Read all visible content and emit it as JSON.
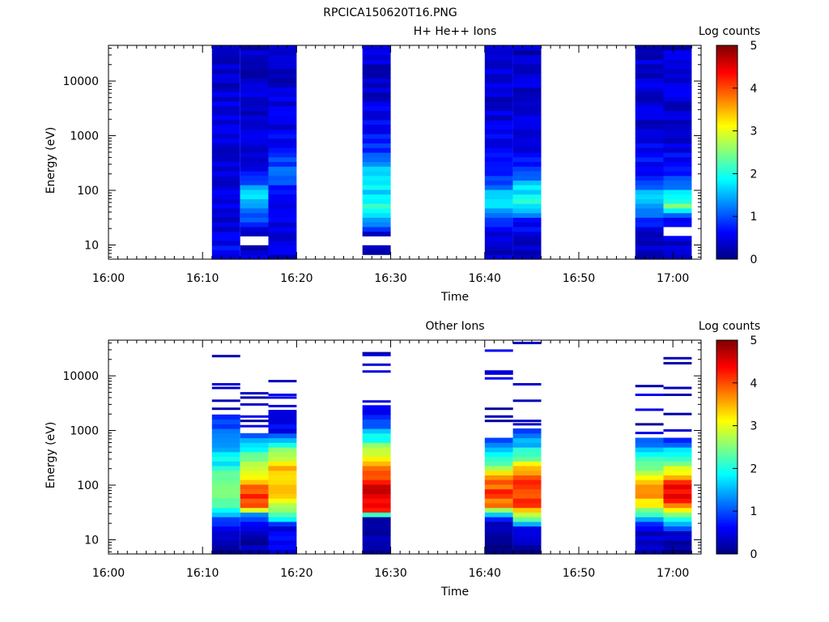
{
  "figure": {
    "title": "RPCICA150620T16.PNG"
  },
  "chart_data": [
    {
      "type": "heatmap",
      "title": "H+ He++ Ions",
      "xlabel": "Time",
      "ylabel": "Energy (eV)",
      "xlim": [
        "16:00",
        "17:03"
      ],
      "ylim": [
        5.5,
        45000
      ],
      "yscale": "log",
      "x_ticks": [
        "16:00",
        "16:10",
        "16:20",
        "16:30",
        "16:40",
        "16:50",
        "17:00"
      ],
      "y_ticks": [
        "10",
        "100",
        "1000",
        "10000"
      ],
      "colorbar": {
        "label": "Log counts",
        "ticks": [
          "0",
          "1",
          "2",
          "3",
          "4",
          "5"
        ],
        "range": [
          0,
          5
        ],
        "colormap": "jet"
      },
      "grid": false,
      "columns": [
        {
          "start": "16:11",
          "end": "16:14",
          "profile": [
            [
              5.5,
              0.7
            ],
            [
              10,
              0.55
            ],
            [
              25,
              0.45
            ],
            [
              60,
              0.5
            ],
            [
              150,
              0.5
            ],
            [
              500,
              0.45
            ],
            [
              2000,
              0.45
            ],
            [
              10000,
              0.4
            ],
            [
              45000,
              0.35
            ]
          ],
          "gaps": []
        },
        {
          "start": "16:14",
          "end": "16:17",
          "profile": [
            [
              5.5,
              0.3
            ],
            [
              20,
              0.5
            ],
            [
              30,
              1.0
            ],
            [
              50,
              1.4
            ],
            [
              80,
              1.7
            ],
            [
              120,
              1.2
            ],
            [
              200,
              0.7
            ],
            [
              500,
              0.5
            ],
            [
              2000,
              0.4
            ],
            [
              10000,
              0.35
            ],
            [
              45000,
              0.3
            ]
          ],
          "gaps": [
            [
              10,
              15
            ]
          ]
        },
        {
          "start": "16:17",
          "end": "16:20",
          "profile": [
            [
              5.5,
              0.35
            ],
            [
              30,
              0.6
            ],
            [
              100,
              0.8
            ],
            [
              250,
              1.1
            ],
            [
              400,
              0.9
            ],
            [
              800,
              0.6
            ],
            [
              2000,
              0.45
            ],
            [
              10000,
              0.4
            ],
            [
              45000,
              0.35
            ]
          ],
          "gaps": []
        },
        {
          "start": "16:27",
          "end": "16:30",
          "profile": [
            [
              5.5,
              0.05
            ],
            [
              9,
              0.3
            ],
            [
              16,
              0.5
            ],
            [
              30,
              1.5
            ],
            [
              50,
              2.0
            ],
            [
              100,
              1.7
            ],
            [
              200,
              1.9
            ],
            [
              350,
              1.3
            ],
            [
              700,
              0.7
            ],
            [
              2000,
              0.5
            ],
            [
              10000,
              0.4
            ],
            [
              45000,
              0.35
            ]
          ],
          "gaps": [
            [
              5.5,
              6.2
            ],
            [
              9.5,
              15
            ]
          ]
        },
        {
          "start": "16:40",
          "end": "16:43",
          "profile": [
            [
              5.5,
              0.4
            ],
            [
              20,
              0.55
            ],
            [
              40,
              1.3
            ],
            [
              60,
              1.9
            ],
            [
              100,
              1.4
            ],
            [
              200,
              0.8
            ],
            [
              1000,
              0.5
            ],
            [
              5000,
              0.4
            ],
            [
              45000,
              0.35
            ]
          ],
          "gaps": []
        },
        {
          "start": "16:43",
          "end": "16:46",
          "profile": [
            [
              5.5,
              0.3
            ],
            [
              25,
              0.6
            ],
            [
              40,
              1.5
            ],
            [
              70,
              2.1
            ],
            [
              120,
              1.6
            ],
            [
              250,
              0.8
            ],
            [
              1000,
              0.45
            ],
            [
              5000,
              0.4
            ],
            [
              45000,
              0.3
            ]
          ],
          "gaps": []
        },
        {
          "start": "16:56",
          "end": "16:59",
          "profile": [
            [
              5.5,
              0.15
            ],
            [
              20,
              0.5
            ],
            [
              40,
              1.2
            ],
            [
              70,
              1.8
            ],
            [
              100,
              1.3
            ],
            [
              200,
              0.7
            ],
            [
              1000,
              0.45
            ],
            [
              5000,
              0.4
            ],
            [
              45000,
              0.35
            ]
          ],
          "gaps": []
        },
        {
          "start": "16:59",
          "end": "17:02",
          "profile": [
            [
              5.5,
              0.3
            ],
            [
              30,
              0.7
            ],
            [
              50,
              2.4
            ],
            [
              80,
              1.8
            ],
            [
              150,
              1.0
            ],
            [
              400,
              0.6
            ],
            [
              1000,
              0.45
            ],
            [
              5000,
              0.4
            ],
            [
              45000,
              0.35
            ]
          ],
          "gaps": [
            [
              15,
              20
            ]
          ]
        }
      ]
    },
    {
      "type": "heatmap",
      "title": "Other Ions",
      "xlabel": "Time",
      "ylabel": "Energy (eV)",
      "xlim": [
        "16:00",
        "17:03"
      ],
      "ylim": [
        5.5,
        45000
      ],
      "yscale": "log",
      "x_ticks": [
        "16:00",
        "16:10",
        "16:20",
        "16:30",
        "16:40",
        "16:50",
        "17:00"
      ],
      "y_ticks": [
        "10",
        "100",
        "1000",
        "10000"
      ],
      "colorbar": {
        "label": "Log counts",
        "ticks": [
          "0",
          "1",
          "2",
          "3",
          "4",
          "5"
        ],
        "range": [
          0,
          5
        ],
        "colormap": "jet"
      },
      "grid": false,
      "columns": [
        {
          "start": "16:11",
          "end": "16:14",
          "profile": [
            [
              5.5,
              0.1
            ],
            [
              15,
              0.3
            ],
            [
              20,
              0.7
            ],
            [
              30,
              1.6
            ],
            [
              50,
              2.3
            ],
            [
              100,
              2.6
            ],
            [
              200,
              2.1
            ],
            [
              500,
              1.4
            ],
            [
              1000,
              1.0
            ],
            [
              1800,
              0.7
            ]
          ],
          "top": 1800,
          "sparse": [
            2500,
            3500,
            6000,
            7000,
            23000
          ]
        },
        {
          "start": "16:14",
          "end": "16:17",
          "profile": [
            [
              5.5,
              0.1
            ],
            [
              20,
              0.6
            ],
            [
              30,
              1.5
            ],
            [
              40,
              3.8
            ],
            [
              60,
              4.1
            ],
            [
              100,
              3.7
            ],
            [
              150,
              3.0
            ],
            [
              300,
              2.5
            ],
            [
              600,
              1.5
            ],
            [
              900,
              0.8
            ]
          ],
          "top": 900,
          "sparse": [
            1200,
            1500,
            1800,
            3000,
            4000,
            4800
          ]
        },
        {
          "start": "16:17",
          "end": "16:20",
          "profile": [
            [
              5.5,
              0.5
            ],
            [
              18,
              0.5
            ],
            [
              22,
              1.5
            ],
            [
              30,
              2.5
            ],
            [
              60,
              3.2
            ],
            [
              120,
              3.3
            ],
            [
              200,
              3.5
            ],
            [
              400,
              2.6
            ],
            [
              700,
              1.6
            ],
            [
              1000,
              0.6
            ],
            [
              1800,
              0.3
            ]
          ],
          "top": 2200,
          "sparse": [
            2800,
            4000,
            4500,
            8000
          ]
        },
        {
          "start": "16:27",
          "end": "16:30",
          "profile": [
            [
              5.5,
              0.1
            ],
            [
              25,
              0.3
            ],
            [
              28,
              1.8
            ],
            [
              35,
              4.1
            ],
            [
              60,
              4.5
            ],
            [
              100,
              4.5
            ],
            [
              150,
              4.0
            ],
            [
              250,
              3.5
            ],
            [
              500,
              2.5
            ],
            [
              1000,
              1.5
            ],
            [
              1500,
              0.9
            ],
            [
              2500,
              0.5
            ]
          ],
          "top": 2800,
          "sparse": [
            3400,
            12000,
            16000,
            24000,
            26000
          ]
        },
        {
          "start": "16:40",
          "end": "16:43",
          "profile": [
            [
              5.5,
              0.1
            ],
            [
              20,
              0.3
            ],
            [
              30,
              1.5
            ],
            [
              40,
              3.6
            ],
            [
              70,
              4.1
            ],
            [
              120,
              3.8
            ],
            [
              200,
              2.8
            ],
            [
              400,
              1.6
            ],
            [
              700,
              0.7
            ]
          ],
          "top": 750,
          "sparse": [
            1500,
            1800,
            2500,
            9000,
            11000,
            12000,
            29000
          ]
        },
        {
          "start": "16:43",
          "end": "16:46",
          "profile": [
            [
              5.5,
              0.1
            ],
            [
              15,
              0.3
            ],
            [
              25,
              2.5
            ],
            [
              40,
              4.0
            ],
            [
              80,
              4.2
            ],
            [
              150,
              3.9
            ],
            [
              250,
              3.0
            ],
            [
              400,
              2.0
            ],
            [
              700,
              1.4
            ],
            [
              1000,
              1.1
            ]
          ],
          "top": 1000,
          "sparse": [
            1300,
            1500,
            3500,
            7000,
            40000
          ]
        },
        {
          "start": "16:56",
          "end": "16:59",
          "profile": [
            [
              5.5,
              0.1
            ],
            [
              18,
              0.5
            ],
            [
              25,
              1.6
            ],
            [
              40,
              3.0
            ],
            [
              70,
              3.8
            ],
            [
              120,
              3.3
            ],
            [
              200,
              2.6
            ],
            [
              400,
              1.8
            ],
            [
              700,
              0.8
            ]
          ],
          "top": 700,
          "sparse": [
            900,
            1300,
            2400,
            4500,
            6500
          ]
        },
        {
          "start": "16:59",
          "end": "17:02",
          "profile": [
            [
              5.5,
              0.05
            ],
            [
              15,
              0.6
            ],
            [
              25,
              2.0
            ],
            [
              40,
              3.5
            ],
            [
              60,
              4.6
            ],
            [
              100,
              4.3
            ],
            [
              150,
              3.5
            ],
            [
              250,
              2.6
            ],
            [
              500,
              1.4
            ],
            [
              700,
              0.8
            ]
          ],
          "top": 800,
          "sparse": [
            1000,
            2000,
            4500,
            6000,
            17000,
            21000
          ]
        }
      ]
    }
  ]
}
